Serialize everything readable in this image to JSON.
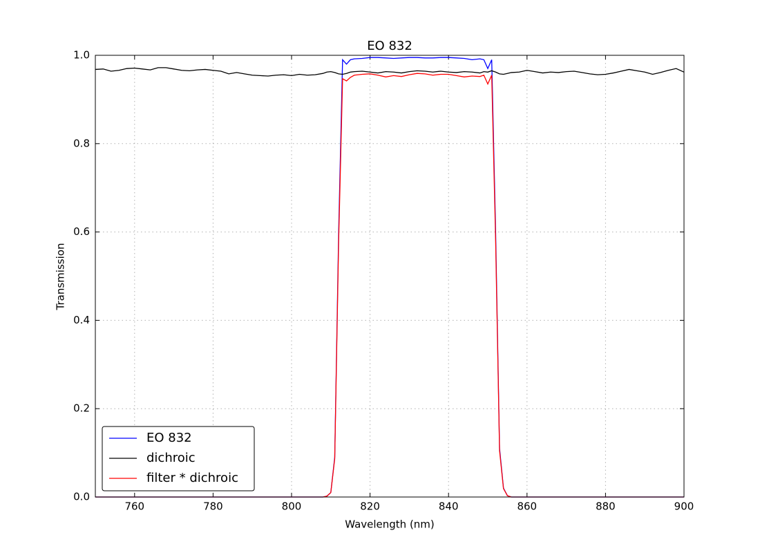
{
  "chart_data": {
    "type": "line",
    "title": "EO 832",
    "x_label": "Wavelength (nm)",
    "y_label": "Transmission",
    "x": [
      750,
      752,
      754,
      756,
      758,
      760,
      762,
      764,
      766,
      768,
      770,
      772,
      774,
      776,
      778,
      780,
      782,
      784,
      786,
      788,
      790,
      792,
      794,
      796,
      798,
      800,
      802,
      804,
      806,
      808,
      809,
      810,
      811,
      812,
      813,
      814,
      815,
      816,
      818,
      820,
      822,
      824,
      826,
      828,
      830,
      832,
      834,
      836,
      838,
      840,
      842,
      844,
      846,
      848,
      849,
      850,
      851,
      852,
      853,
      854,
      855,
      856,
      858,
      860,
      862,
      864,
      866,
      868,
      870,
      872,
      874,
      876,
      878,
      880,
      882,
      884,
      886,
      888,
      890,
      892,
      894,
      896,
      898,
      900
    ],
    "series": [
      {
        "name": "EO 832",
        "color": "#0000ff",
        "values": [
          0,
          0,
          0,
          0,
          0,
          0,
          0,
          0,
          0,
          0,
          0,
          0,
          0,
          0,
          0,
          0,
          0,
          0,
          0,
          0,
          0,
          0,
          0,
          0,
          0,
          0,
          0,
          0,
          0,
          0,
          0.002,
          0.01,
          0.09,
          0.6,
          0.99,
          0.98,
          0.99,
          0.992,
          0.993,
          0.995,
          0.995,
          0.994,
          0.993,
          0.994,
          0.995,
          0.995,
          0.994,
          0.994,
          0.995,
          0.995,
          0.994,
          0.993,
          0.99,
          0.992,
          0.99,
          0.97,
          0.99,
          0.6,
          0.11,
          0.02,
          0.003,
          0,
          0,
          0,
          0,
          0,
          0,
          0,
          0,
          0,
          0,
          0,
          0,
          0,
          0,
          0,
          0,
          0,
          0,
          0,
          0,
          0,
          0,
          0
        ]
      },
      {
        "name": "dichroic",
        "color": "#000000",
        "values": [
          0.968,
          0.969,
          0.964,
          0.966,
          0.97,
          0.971,
          0.969,
          0.967,
          0.972,
          0.972,
          0.969,
          0.966,
          0.965,
          0.967,
          0.968,
          0.966,
          0.964,
          0.958,
          0.961,
          0.958,
          0.955,
          0.954,
          0.953,
          0.955,
          0.956,
          0.954,
          0.957,
          0.955,
          0.956,
          0.959,
          0.962,
          0.963,
          0.961,
          0.958,
          0.957,
          0.959,
          0.962,
          0.963,
          0.964,
          0.962,
          0.96,
          0.963,
          0.962,
          0.96,
          0.963,
          0.965,
          0.964,
          0.962,
          0.964,
          0.962,
          0.961,
          0.963,
          0.962,
          0.96,
          0.963,
          0.962,
          0.965,
          0.962,
          0.958,
          0.957,
          0.959,
          0.961,
          0.962,
          0.966,
          0.963,
          0.96,
          0.962,
          0.961,
          0.963,
          0.964,
          0.961,
          0.958,
          0.956,
          0.957,
          0.96,
          0.964,
          0.968,
          0.965,
          0.962,
          0.957,
          0.961,
          0.966,
          0.97,
          0.962
        ]
      },
      {
        "name": "filter * dichroic",
        "color": "#ff0000",
        "values": [
          0,
          0,
          0,
          0,
          0,
          0,
          0,
          0,
          0,
          0,
          0,
          0,
          0,
          0,
          0,
          0,
          0,
          0,
          0,
          0,
          0,
          0,
          0,
          0,
          0,
          0,
          0,
          0,
          0,
          0,
          0.002,
          0.01,
          0.087,
          0.58,
          0.947,
          0.942,
          0.95,
          0.955,
          0.957,
          0.958,
          0.955,
          0.951,
          0.954,
          0.952,
          0.956,
          0.959,
          0.958,
          0.955,
          0.957,
          0.957,
          0.954,
          0.951,
          0.953,
          0.952,
          0.955,
          0.935,
          0.955,
          0.58,
          0.105,
          0.019,
          0.003,
          0,
          0,
          0,
          0,
          0,
          0,
          0,
          0,
          0,
          0,
          0,
          0,
          0,
          0,
          0,
          0,
          0,
          0,
          0,
          0,
          0,
          0,
          0
        ]
      }
    ],
    "xlim": [
      750,
      900
    ],
    "xticks": [
      760,
      780,
      800,
      820,
      840,
      860,
      880,
      900
    ],
    "ylim": [
      0,
      1
    ],
    "yticks": [
      {
        "value": 0,
        "label": "0.0"
      },
      0.2,
      0.4,
      0.6,
      0.8,
      {
        "value": 1,
        "label": "1.0"
      }
    ],
    "grid": true,
    "legend": "lower left"
  }
}
